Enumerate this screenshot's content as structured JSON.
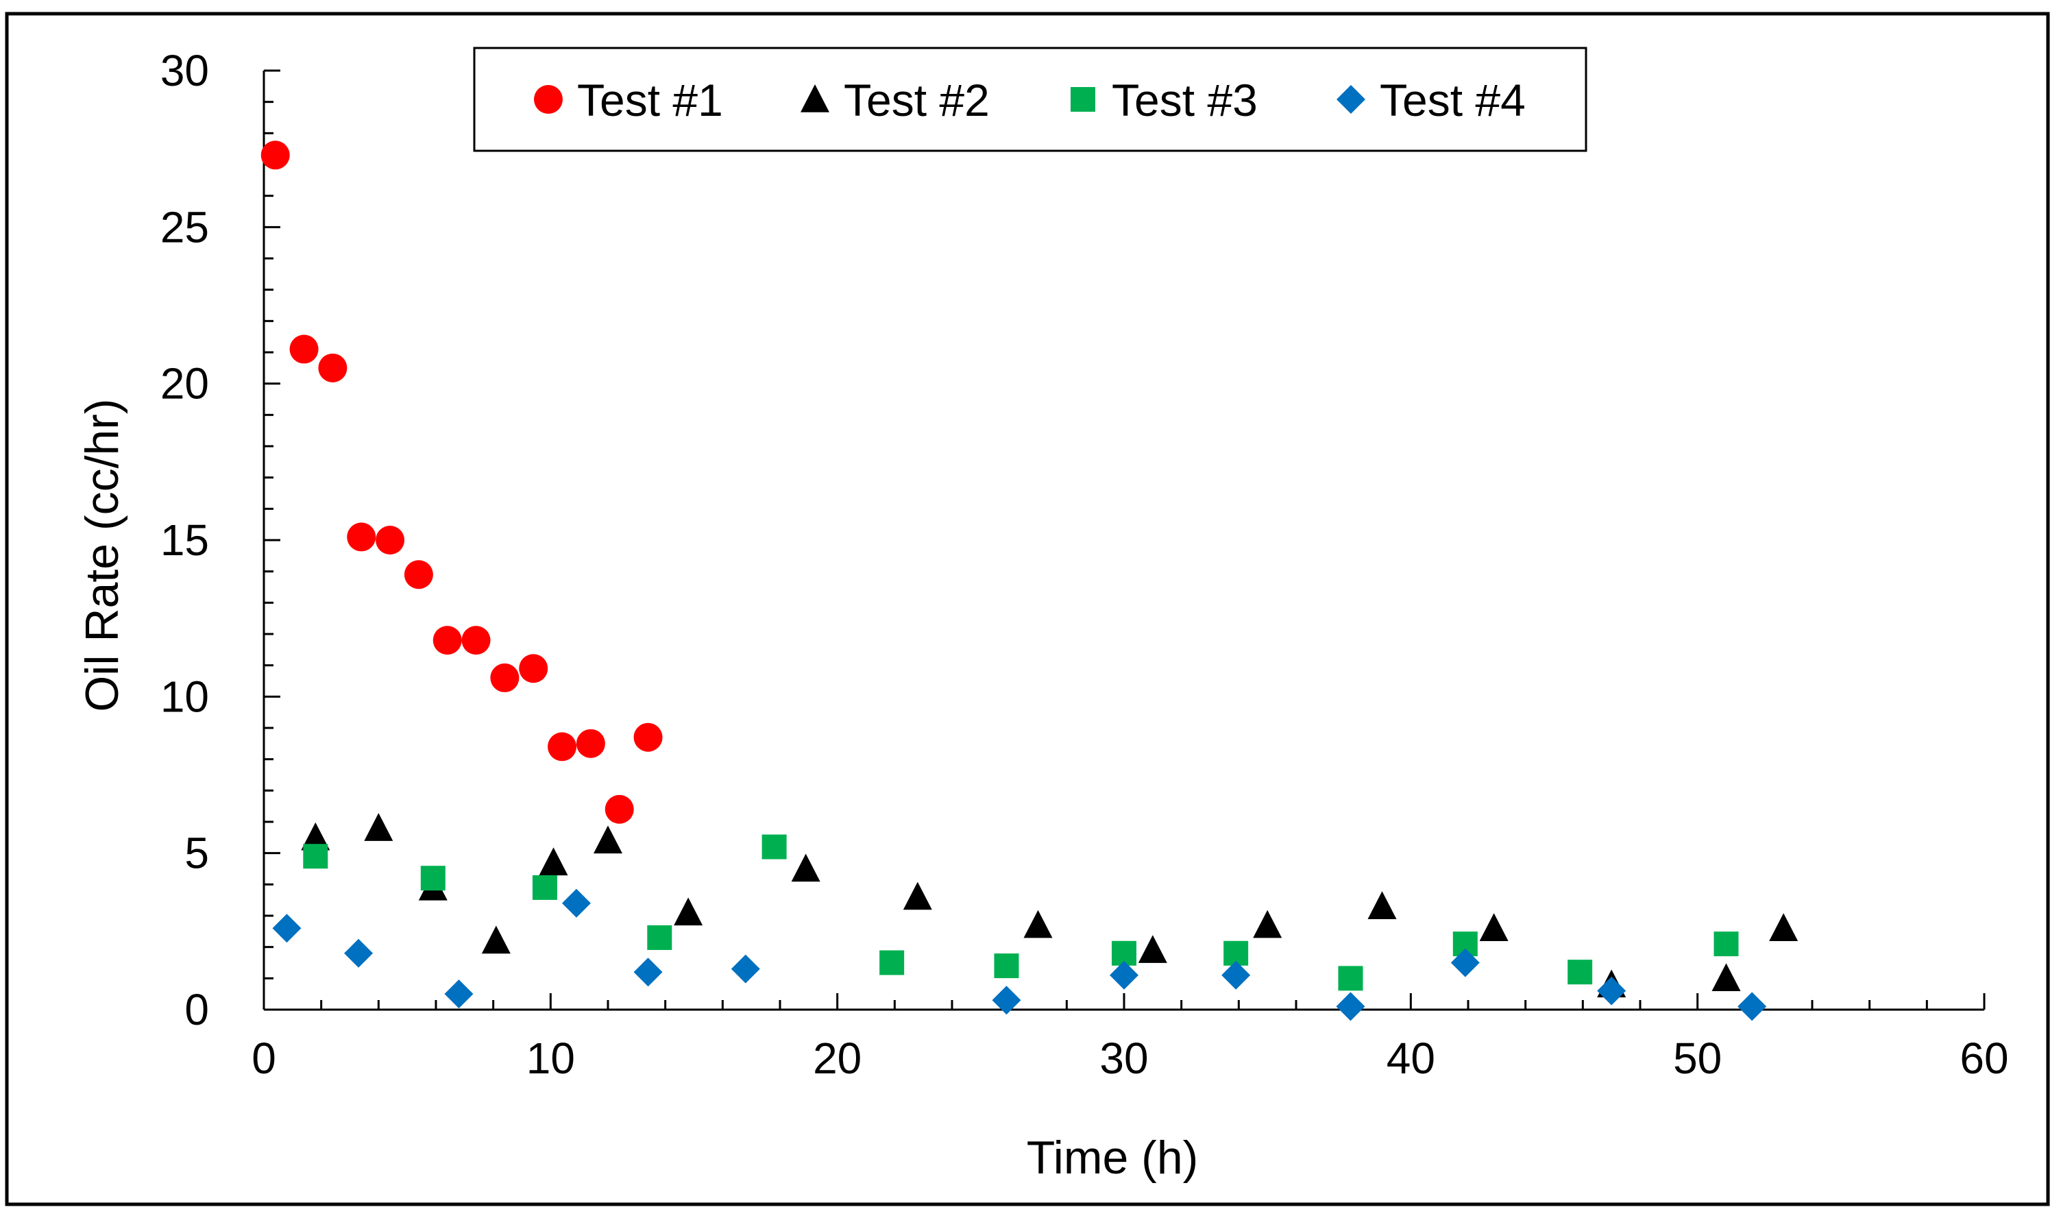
{
  "chart_data": {
    "type": "scatter",
    "title": "",
    "xlabel": "Time (h)",
    "ylabel": "Oil Rate (cc/hr)",
    "xlim": [
      0,
      60
    ],
    "ylim": [
      0,
      30
    ],
    "xticks": [
      0,
      10,
      20,
      30,
      40,
      50,
      60
    ],
    "yticks": [
      0,
      5,
      10,
      15,
      20,
      25,
      30
    ],
    "grid": false,
    "legend_position": "top",
    "series": [
      {
        "name": "Test #1",
        "marker": "circle",
        "color": "#ff0000",
        "x": [
          0.4,
          1.4,
          2.4,
          3.4,
          4.4,
          5.4,
          6.4,
          7.4,
          8.4,
          9.4,
          10.4,
          11.4,
          12.4,
          13.4
        ],
        "y": [
          27.3,
          21.1,
          20.5,
          15.1,
          15.0,
          13.9,
          11.8,
          11.8,
          10.6,
          10.9,
          8.4,
          8.5,
          6.4,
          8.7
        ]
      },
      {
        "name": "Test #2",
        "marker": "triangle",
        "color": "#000000",
        "x": [
          1.8,
          4.0,
          5.9,
          8.1,
          10.1,
          12.0,
          14.8,
          18.9,
          22.8,
          27.0,
          31.0,
          35.0,
          39.0,
          42.9,
          47.0,
          51.0,
          53.0
        ],
        "y": [
          5.5,
          5.8,
          3.9,
          2.2,
          4.7,
          5.4,
          3.1,
          4.5,
          3.6,
          2.7,
          1.9,
          2.7,
          3.3,
          2.6,
          0.8,
          1.0,
          2.6
        ]
      },
      {
        "name": "Test #3",
        "marker": "square",
        "color": "#00b050",
        "x": [
          1.8,
          5.9,
          9.8,
          13.8,
          17.8,
          21.9,
          25.9,
          30.0,
          33.9,
          37.9,
          41.9,
          45.9,
          51.0
        ],
        "y": [
          4.9,
          4.2,
          3.9,
          2.3,
          5.2,
          1.5,
          1.4,
          1.8,
          1.8,
          1.0,
          2.1,
          1.2,
          2.1
        ]
      },
      {
        "name": "Test #4",
        "marker": "diamond",
        "color": "#0070c0",
        "x": [
          0.8,
          3.3,
          6.8,
          10.9,
          13.4,
          16.8,
          25.9,
          30.0,
          33.9,
          37.9,
          41.9,
          47.0,
          51.9
        ],
        "y": [
          2.6,
          1.8,
          0.5,
          3.4,
          1.2,
          1.3,
          0.3,
          1.1,
          1.1,
          0.1,
          1.5,
          0.6,
          0.1
        ]
      }
    ]
  }
}
